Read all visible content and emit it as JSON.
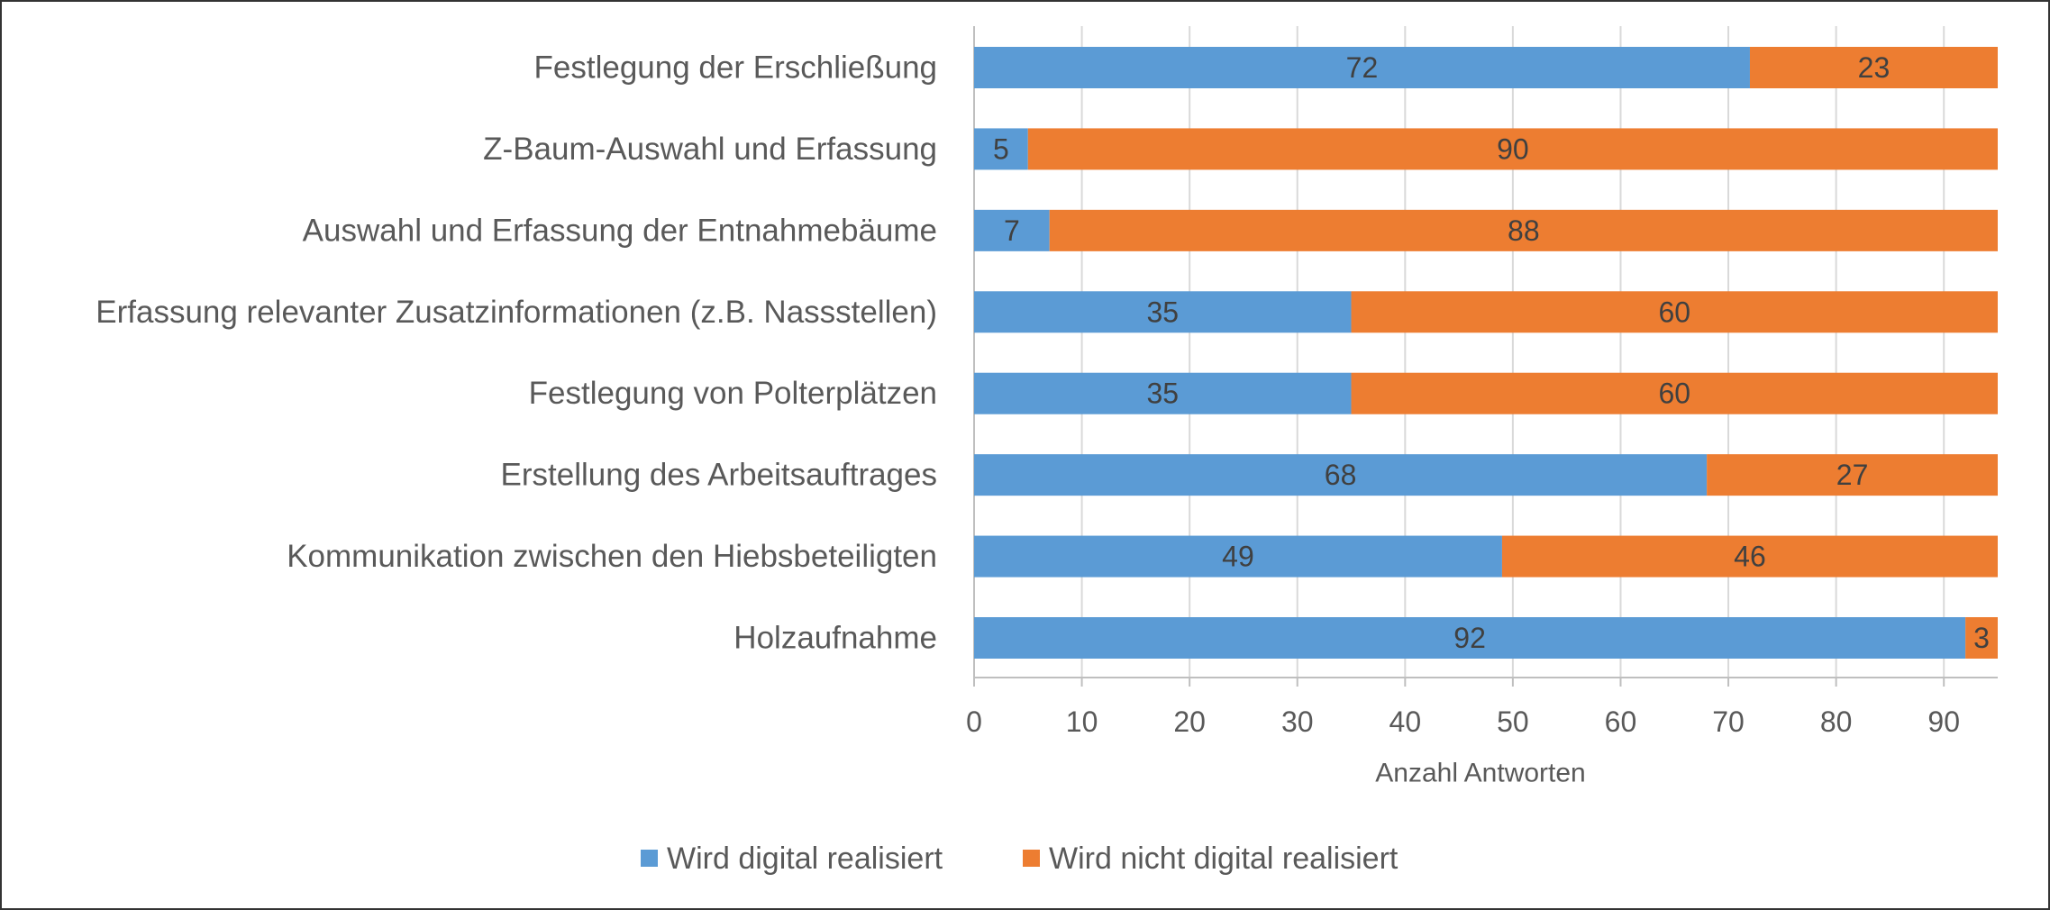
{
  "chart_data": {
    "type": "stacked_bar_horizontal",
    "categories": [
      "Festlegung der Erschließung",
      "Z-Baum-Auswahl und Erfassung",
      "Auswahl und Erfassung der Entnahmebäume",
      "Erfassung relevanter Zusatzinformationen (z.B. Nassstellen)",
      "Festlegung von Polterplätzen",
      "Erstellung des Arbeitsauftrages",
      "Kommunikation zwischen den Hiebsbeteiligten",
      "Holzaufnahme"
    ],
    "series": [
      {
        "name": "Wird digital realisiert",
        "color": "#5b9bd5",
        "values": [
          72,
          5,
          7,
          35,
          35,
          68,
          49,
          92
        ]
      },
      {
        "name": "Wird nicht digital realisiert",
        "color": "#ed7d31",
        "values": [
          23,
          90,
          88,
          60,
          60,
          27,
          46,
          3
        ]
      }
    ],
    "xlabel": "Anzahl Antworten",
    "xlim": [
      0,
      95
    ],
    "xticks": [
      0,
      10,
      20,
      30,
      40,
      50,
      60,
      70,
      80,
      90
    ],
    "grid": true,
    "legend": "bottom"
  }
}
